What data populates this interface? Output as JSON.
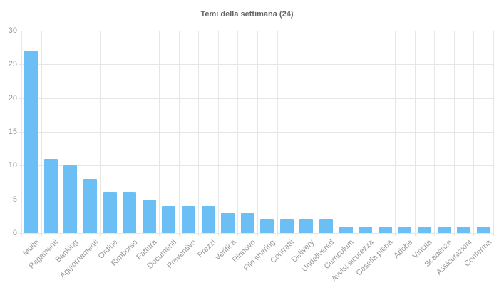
{
  "chart_data": {
    "type": "bar",
    "title": "Temi della settimana (24)",
    "categories": [
      "Multe",
      "Pagamenti",
      "Banking",
      "Aggiornamenti",
      "Ordine",
      "Rimborso",
      "Fattura",
      "Documenti",
      "Preventivo",
      "Prezzi",
      "Verifica",
      "Rinnovo",
      "File sharing",
      "Contratti",
      "Delivery",
      "Undelivered",
      "Curriculum",
      "Avvisi sicurezza",
      "Casella piena",
      "Adobe",
      "Vincita",
      "Scadenze",
      "Assicurazioni",
      "Conferma"
    ],
    "values": [
      27,
      11,
      10,
      8,
      6,
      6,
      5,
      4,
      4,
      4,
      3,
      3,
      2,
      2,
      2,
      2,
      1,
      1,
      1,
      1,
      1,
      1,
      1,
      1
    ],
    "xlabel": "",
    "ylabel": "",
    "ylim": [
      0,
      30
    ],
    "yticks": [
      0,
      5,
      10,
      15,
      20,
      25,
      30
    ],
    "grid": true,
    "legend": "none",
    "bar_color": "#6cbff5",
    "grid_color": "#e6e6e6",
    "tick_label_color": "#999999",
    "title_color": "#666666"
  }
}
